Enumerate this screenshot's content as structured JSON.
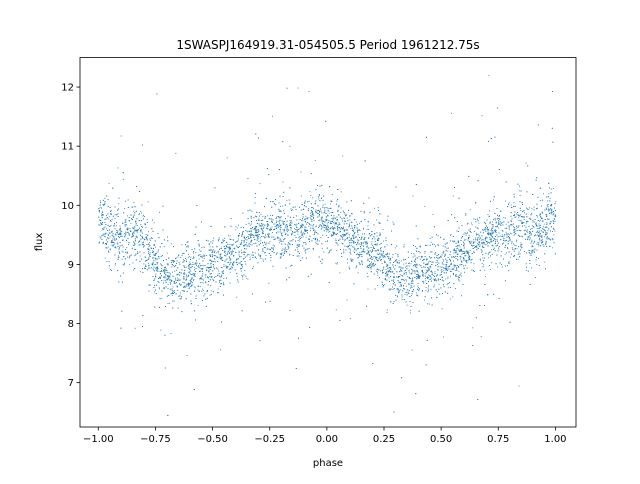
{
  "chart_data": {
    "type": "scatter",
    "title": "1SWASPJ164919.31-054505.5 Period 1961212.75s",
    "xlabel": "phase",
    "ylabel": "flux",
    "xlim": [
      -1.08,
      1.09
    ],
    "ylim": [
      6.25,
      12.5
    ],
    "grid": false,
    "legend": "none",
    "xticks": [
      -1.0,
      -0.75,
      -0.5,
      -0.25,
      0.0,
      0.25,
      0.5,
      0.75,
      1.0
    ],
    "xtick_labels": [
      "−1.00",
      "−0.75",
      "−0.50",
      "−0.25",
      "0.00",
      "0.25",
      "0.50",
      "0.75",
      "1.00"
    ],
    "yticks": [
      7,
      8,
      9,
      10,
      11,
      12
    ],
    "ytick_labels": [
      "7",
      "8",
      "9",
      "10",
      "11",
      "12"
    ],
    "marker_color": "#1f77b4",
    "series": [
      {
        "x": [
          -1.0,
          -0.97,
          -0.94,
          -0.91,
          -0.88,
          -0.85,
          -0.82,
          -0.79,
          -0.76,
          -0.73,
          -0.7,
          -0.67,
          -0.64,
          -0.61,
          -0.58,
          -0.55,
          -0.52,
          -0.49,
          -0.46,
          -0.43,
          -0.4,
          -0.37,
          -0.34,
          -0.31,
          -0.28,
          -0.25,
          -0.22,
          -0.19,
          -0.16,
          -0.13,
          -0.1,
          -0.07,
          -0.04,
          -0.01,
          0.02,
          0.05,
          0.08,
          0.11,
          0.14,
          0.17,
          0.2,
          0.23,
          0.26,
          0.29,
          0.32,
          0.35,
          0.38,
          0.41,
          0.44,
          0.47,
          0.5,
          0.53,
          0.56,
          0.59,
          0.62,
          0.65,
          0.68,
          0.71,
          0.74,
          0.77,
          0.8,
          0.83,
          0.86,
          0.89,
          0.92,
          0.95,
          0.98,
          1.0
        ],
        "y": [
          9.8,
          9.6,
          9.5,
          9.4,
          9.4,
          9.5,
          9.5,
          9.3,
          9.1,
          8.9,
          8.8,
          8.75,
          8.8,
          8.9,
          8.9,
          8.9,
          9.0,
          9.0,
          9.05,
          9.1,
          9.2,
          9.3,
          9.4,
          9.45,
          9.5,
          9.55,
          9.6,
          9.6,
          9.55,
          9.5,
          9.6,
          9.7,
          9.8,
          9.8,
          9.7,
          9.6,
          9.5,
          9.4,
          9.35,
          9.3,
          9.2,
          9.1,
          9.0,
          8.9,
          8.8,
          8.75,
          8.8,
          8.9,
          8.9,
          8.95,
          9.0,
          9.05,
          9.1,
          9.2,
          9.3,
          9.35,
          9.4,
          9.45,
          9.5,
          9.55,
          9.6,
          9.6,
          9.55,
          9.5,
          9.55,
          9.65,
          9.75,
          9.8
        ],
        "spread": [
          0.35,
          0.4,
          0.45,
          0.45,
          0.45,
          0.45,
          0.5,
          0.45,
          0.45,
          0.4,
          0.4,
          0.4,
          0.4,
          0.4,
          0.4,
          0.4,
          0.4,
          0.4,
          0.4,
          0.4,
          0.4,
          0.4,
          0.4,
          0.4,
          0.4,
          0.4,
          0.4,
          0.4,
          0.4,
          0.4,
          0.4,
          0.4,
          0.4,
          0.4,
          0.4,
          0.4,
          0.4,
          0.4,
          0.4,
          0.4,
          0.4,
          0.4,
          0.4,
          0.4,
          0.4,
          0.4,
          0.4,
          0.4,
          0.4,
          0.4,
          0.4,
          0.4,
          0.4,
          0.4,
          0.4,
          0.4,
          0.4,
          0.4,
          0.45,
          0.45,
          0.45,
          0.45,
          0.45,
          0.45,
          0.45,
          0.45,
          0.4,
          0.35
        ]
      }
    ]
  }
}
